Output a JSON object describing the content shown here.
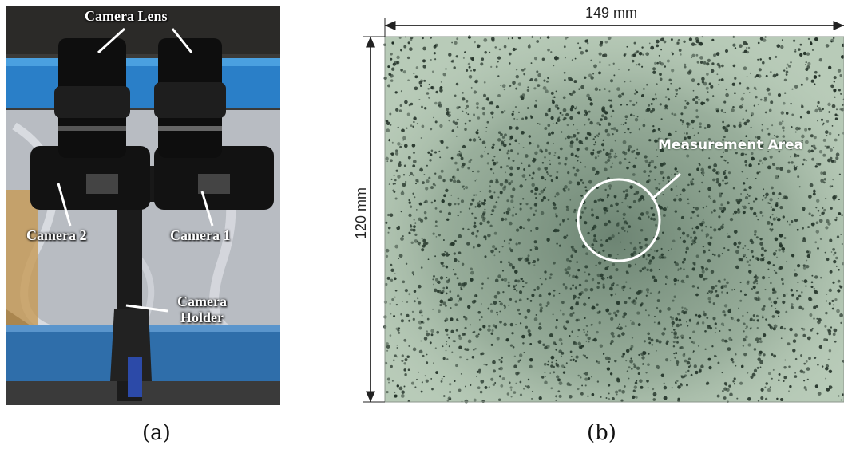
{
  "panel_a": {
    "labels": {
      "camera_lens": "Camera Lens",
      "camera_2": "Camera 2",
      "camera_1": "Camera 1",
      "camera_holder": "Camera Holder"
    },
    "caption": "(a)"
  },
  "panel_b": {
    "width_label": "149 mm",
    "height_label": "120 mm",
    "measurement_area_label": "Measurement Area",
    "caption": "(b)"
  }
}
